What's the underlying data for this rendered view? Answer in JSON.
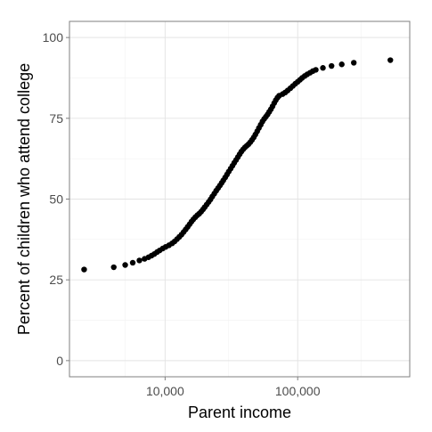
{
  "chart_data": {
    "type": "scatter",
    "title": "",
    "xlabel": "Parent income",
    "ylabel": "Percent of children who attend college",
    "x_scale": "log10",
    "xlim": [
      1900,
      700000
    ],
    "ylim": [
      -5,
      105
    ],
    "x_ticks": [
      {
        "value": 10000,
        "label": "10,000"
      },
      {
        "value": 100000,
        "label": "100,000"
      }
    ],
    "y_ticks": [
      {
        "value": 0,
        "label": "0"
      },
      {
        "value": 25,
        "label": "25"
      },
      {
        "value": 50,
        "label": "50"
      },
      {
        "value": 75,
        "label": "75"
      },
      {
        "value": 100,
        "label": "100"
      }
    ],
    "grid": true,
    "legend": "none",
    "point_color": "#000000",
    "points": [
      [
        2450,
        28.2
      ],
      [
        4100,
        28.9
      ],
      [
        5000,
        29.6
      ],
      [
        5700,
        30.3
      ],
      [
        6400,
        31.0
      ],
      [
        7000,
        31.5
      ],
      [
        7500,
        32.0
      ],
      [
        7900,
        32.5
      ],
      [
        8300,
        33.0
      ],
      [
        8700,
        33.6
      ],
      [
        9100,
        34.1
      ],
      [
        9600,
        34.7
      ],
      [
        10100,
        35.2
      ],
      [
        10700,
        35.7
      ],
      [
        11300,
        36.3
      ],
      [
        11800,
        36.9
      ],
      [
        12300,
        37.6
      ],
      [
        12800,
        38.3
      ],
      [
        13300,
        39.0
      ],
      [
        13800,
        39.8
      ],
      [
        14300,
        40.6
      ],
      [
        14800,
        41.4
      ],
      [
        15300,
        42.2
      ],
      [
        15800,
        43.0
      ],
      [
        16300,
        43.7
      ],
      [
        16900,
        44.4
      ],
      [
        17500,
        45.0
      ],
      [
        18100,
        45.5
      ],
      [
        18700,
        46.1
      ],
      [
        19300,
        46.8
      ],
      [
        19900,
        47.5
      ],
      [
        20600,
        48.3
      ],
      [
        21300,
        49.1
      ],
      [
        22000,
        49.9
      ],
      [
        22700,
        50.8
      ],
      [
        23500,
        51.7
      ],
      [
        24300,
        52.6
      ],
      [
        25100,
        53.4
      ],
      [
        25900,
        54.2
      ],
      [
        26700,
        55.0
      ],
      [
        27500,
        55.8
      ],
      [
        28400,
        56.7
      ],
      [
        29300,
        57.6
      ],
      [
        30200,
        58.5
      ],
      [
        31200,
        59.4
      ],
      [
        32200,
        60.3
      ],
      [
        33200,
        61.2
      ],
      [
        34300,
        62.1
      ],
      [
        35400,
        63.0
      ],
      [
        36500,
        63.9
      ],
      [
        37600,
        64.7
      ],
      [
        38800,
        65.4
      ],
      [
        40000,
        66.0
      ],
      [
        41300,
        66.5
      ],
      [
        42600,
        67.0
      ],
      [
        43900,
        67.6
      ],
      [
        45200,
        68.3
      ],
      [
        46600,
        69.1
      ],
      [
        48000,
        70.0
      ],
      [
        49500,
        71.0
      ],
      [
        51000,
        72.0
      ],
      [
        52600,
        73.0
      ],
      [
        54200,
        74.0
      ],
      [
        55900,
        74.8
      ],
      [
        57600,
        75.5
      ],
      [
        59300,
        76.2
      ],
      [
        61000,
        77.0
      ],
      [
        62800,
        77.8
      ],
      [
        64600,
        78.7
      ],
      [
        66500,
        79.7
      ],
      [
        68400,
        80.6
      ],
      [
        70400,
        81.4
      ],
      [
        72500,
        82.0
      ],
      [
        77000,
        82.5
      ],
      [
        80500,
        83.0
      ],
      [
        84000,
        83.6
      ],
      [
        88000,
        84.3
      ],
      [
        92000,
        85.0
      ],
      [
        96000,
        85.7
      ],
      [
        100000,
        86.3
      ],
      [
        104000,
        86.9
      ],
      [
        108000,
        87.5
      ],
      [
        113000,
        88.1
      ],
      [
        118000,
        88.6
      ],
      [
        124000,
        89.1
      ],
      [
        130000,
        89.6
      ],
      [
        137000,
        90.0
      ],
      [
        155000,
        90.6
      ],
      [
        180000,
        91.2
      ],
      [
        215000,
        91.7
      ],
      [
        265000,
        92.2
      ],
      [
        500000,
        93.0
      ]
    ]
  }
}
